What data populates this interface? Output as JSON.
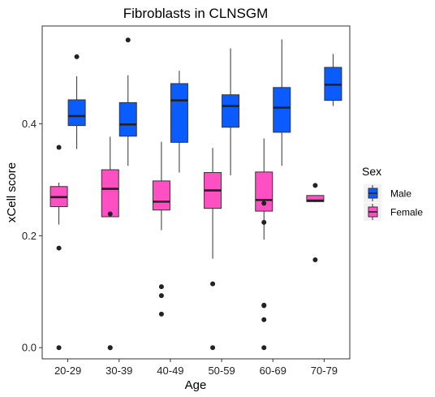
{
  "chart_data": {
    "type": "boxplot",
    "title": "Fibroblasts in CLNSGM",
    "xlabel": "Age",
    "ylabel": "xCell score",
    "categories": [
      "20-29",
      "30-39",
      "40-49",
      "50-59",
      "60-69",
      "70-79"
    ],
    "ylim": [
      -0.02,
      0.575
    ],
    "yticks": [
      0.0,
      0.2,
      0.4
    ],
    "ytick_labels": [
      "0.0",
      "0.2",
      "0.4"
    ],
    "grid": false,
    "legend": {
      "title": "Sex",
      "position": "right"
    },
    "series": [
      {
        "name": "Male",
        "color": "#0a5cff",
        "boxes": [
          {
            "category": "20-29",
            "whisker_low": 0.355,
            "q1": 0.397,
            "median": 0.414,
            "q3": 0.443,
            "whisker_high": 0.485,
            "outliers": [
              0.52
            ]
          },
          {
            "category": "30-39",
            "whisker_low": 0.325,
            "q1": 0.378,
            "median": 0.399,
            "q3": 0.438,
            "whisker_high": 0.487,
            "outliers": [
              0.55
            ]
          },
          {
            "category": "40-49",
            "whisker_low": 0.313,
            "q1": 0.367,
            "median": 0.442,
            "q3": 0.472,
            "whisker_high": 0.495,
            "outliers": []
          },
          {
            "category": "50-59",
            "whisker_low": 0.308,
            "q1": 0.394,
            "median": 0.432,
            "q3": 0.452,
            "whisker_high": 0.535,
            "outliers": []
          },
          {
            "category": "60-69",
            "whisker_low": 0.325,
            "q1": 0.385,
            "median": 0.429,
            "q3": 0.465,
            "whisker_high": 0.551,
            "outliers": []
          },
          {
            "category": "70-79",
            "whisker_low": 0.432,
            "q1": 0.442,
            "median": 0.47,
            "q3": 0.501,
            "whisker_high": 0.525,
            "outliers": []
          }
        ]
      },
      {
        "name": "Female",
        "color": "#ff4fc3",
        "boxes": [
          {
            "category": "20-29",
            "whisker_low": 0.22,
            "q1": 0.252,
            "median": 0.269,
            "q3": 0.288,
            "whisker_high": 0.295,
            "outliers": [
              0.358,
              0.178,
              0.0
            ]
          },
          {
            "category": "30-39",
            "whisker_low": 0.234,
            "q1": 0.234,
            "median": 0.284,
            "q3": 0.318,
            "whisker_high": 0.377,
            "outliers": [
              0.239,
              0.0,
              0.0
            ]
          },
          {
            "category": "40-49",
            "whisker_low": 0.21,
            "q1": 0.246,
            "median": 0.261,
            "q3": 0.298,
            "whisker_high": 0.368,
            "outliers": [
              0.109,
              0.093,
              0.06
            ]
          },
          {
            "category": "50-59",
            "whisker_low": 0.159,
            "q1": 0.249,
            "median": 0.281,
            "q3": 0.313,
            "whisker_high": 0.357,
            "outliers": [
              0.114,
              0.0
            ]
          },
          {
            "category": "60-69",
            "whisker_low": 0.193,
            "q1": 0.244,
            "median": 0.264,
            "q3": 0.314,
            "whisker_high": 0.374,
            "outliers": [
              0.258,
              0.224,
              0.076,
              0.075,
              0.05,
              0.0
            ]
          },
          {
            "category": "70-79",
            "whisker_low": 0.26,
            "q1": 0.261,
            "median": 0.263,
            "q3": 0.272,
            "whisker_high": 0.272,
            "outliers": [
              0.29,
              0.157
            ]
          }
        ]
      }
    ]
  }
}
